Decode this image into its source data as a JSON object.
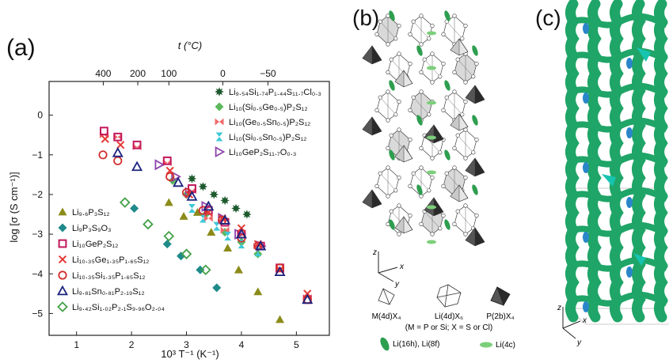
{
  "panels": {
    "a": {
      "label": "(a)"
    },
    "b": {
      "label": "(b)"
    },
    "c": {
      "label": "(c)"
    }
  },
  "chart_data": {
    "type": "scatter",
    "xlabel": "10³ T⁻¹ (K⁻¹)",
    "ylabel": "log [σ (S cm⁻¹)]",
    "top_axis_label": "t (°C)",
    "xlim": [
      0.5,
      5.6
    ],
    "ylim": [
      -5.55,
      0.85
    ],
    "x_ticks": [
      "1",
      "2",
      "3",
      "4",
      "5"
    ],
    "y_ticks": [
      "0",
      "−1",
      "−2",
      "−3",
      "−4",
      "−5"
    ],
    "top_ticks": [
      {
        "label": "400",
        "x": 1.486
      },
      {
        "label": "200",
        "x": 2.114
      },
      {
        "label": "100",
        "x": 2.68
      },
      {
        "label": "0",
        "x": 3.661
      },
      {
        "label": "−50",
        "x": 4.482
      }
    ],
    "grid": false,
    "legend_right": [
      {
        "name": "Li₉.₅₄Si₁.₇₄P₁.₄₄S₁₁.₇Cl₀.₃",
        "marker": "gear",
        "color": "#1e5a2e"
      },
      {
        "name": "Li₁₀(Si₀.₅Ge₀.₅)P₂S₁₂",
        "marker": "diamond",
        "color": "#5cb85c"
      },
      {
        "name": "Li₁₀(Ge₀.₅Sn₀.₅)P₂S₁₂",
        "marker": "bowtie",
        "color": "#f06a6a"
      },
      {
        "name": "Li₁₀(Si₀.₅Sn₀.₅)P₂S₁₂",
        "marker": "hourglass",
        "color": "#3ec8d6"
      },
      {
        "name": "Li₁₀GeP₂S₁₁.₇O₀.₃",
        "marker": "tri-right",
        "color": "#8e44ad"
      }
    ],
    "legend_left": [
      {
        "name": "Li₉.₆P₃S₁₂",
        "marker": "triangle",
        "color": "#8b8b1a"
      },
      {
        "name": "Li₉P₃S₉O₃",
        "marker": "diamond",
        "color": "#1f8a8a"
      },
      {
        "name": "Li₁₀GeP₂S₁₂",
        "marker": "square-open",
        "color": "#c2185b"
      },
      {
        "name": "Li₁₀.₃₅Ge₁.₃₅P₁.₆₅S₁₂",
        "marker": "x",
        "color": "#e53935"
      },
      {
        "name": "Li₁₀.₃₅Si₁.₃₅P₁.₆₅S₁₂",
        "marker": "circle-open",
        "color": "#d32f2f"
      },
      {
        "name": "Li₉.₈₁Sn₀.₈₁P₂.₁₉S₁₂",
        "marker": "triangle-open",
        "color": "#1a237e"
      },
      {
        "name": "Li₉.₄₂Si₁.₀₂P₂.₁S₉.₉₆O₂.₀₄",
        "marker": "diamond-open",
        "color": "#43a047"
      }
    ],
    "series": [
      {
        "name": "Li₉.₅₄Si₁.₇₄P₁.₄₄S₁₁.₇Cl₀.₃",
        "marker": "gear",
        "color": "#1e5a2e",
        "points": [
          [
            3.1,
            -1.6
          ],
          [
            3.3,
            -1.8
          ],
          [
            3.5,
            -2.0
          ],
          [
            3.7,
            -2.15
          ],
          [
            3.9,
            -2.35
          ],
          [
            4.1,
            -2.5
          ]
        ]
      },
      {
        "name": "Li₁₀(Si₀.₅Ge₀.₅)P₂S₁₂",
        "marker": "diamond",
        "color": "#5cb85c",
        "points": [
          [
            2.75,
            -1.65
          ],
          [
            3.0,
            -2.0
          ],
          [
            3.35,
            -2.5
          ],
          [
            3.7,
            -2.95
          ],
          [
            4.0,
            -3.2
          ],
          [
            4.3,
            -3.5
          ]
        ]
      },
      {
        "name": "Li₁₀(Ge₀.₅Sn₀.₅)P₂S₁₂",
        "marker": "bowtie",
        "color": "#f06a6a",
        "points": [
          [
            1.5,
            -0.5
          ],
          [
            1.75,
            -0.55
          ],
          [
            2.1,
            -0.8
          ],
          [
            2.65,
            -1.2
          ],
          [
            3.1,
            -1.9
          ],
          [
            3.4,
            -2.6
          ],
          [
            3.7,
            -2.9
          ],
          [
            4.0,
            -3.0
          ],
          [
            4.3,
            -3.3
          ],
          [
            4.7,
            -3.9
          ],
          [
            5.2,
            -4.6
          ]
        ]
      },
      {
        "name": "Li₁₀(Si₀.₅Sn₀.₅)P₂S₁₂",
        "marker": "hourglass",
        "color": "#3ec8d6",
        "points": [
          [
            3.1,
            -2.35
          ],
          [
            3.3,
            -2.6
          ],
          [
            3.55,
            -2.8
          ],
          [
            3.75,
            -3.05
          ],
          [
            4.0,
            -3.25
          ],
          [
            4.3,
            -3.45
          ]
        ]
      },
      {
        "name": "Li₁₀GeP₂S₁₁.₇O₀.₃",
        "marker": "tri-right",
        "color": "#8e44ad",
        "points": [
          [
            2.5,
            -1.25
          ],
          [
            2.8,
            -1.55
          ],
          [
            3.05,
            -1.95
          ],
          [
            3.35,
            -2.3
          ],
          [
            3.65,
            -2.6
          ],
          [
            3.95,
            -3.0
          ],
          [
            4.35,
            -3.3
          ]
        ]
      },
      {
        "name": "Li₉.₆P₃S₁₂",
        "marker": "triangle",
        "color": "#8b8b1a",
        "points": [
          [
            2.68,
            -2.2
          ],
          [
            2.95,
            -2.55
          ],
          [
            3.2,
            -2.45
          ],
          [
            3.45,
            -2.95
          ],
          [
            3.75,
            -3.35
          ],
          [
            3.95,
            -3.9
          ],
          [
            4.3,
            -4.45
          ],
          [
            4.7,
            -5.15
          ]
        ]
      },
      {
        "name": "Li₉P₃S₉O₃",
        "marker": "diamond",
        "color": "#1f8a8a",
        "points": [
          [
            2.05,
            -2.35
          ],
          [
            2.65,
            -3.25
          ],
          [
            2.9,
            -3.55
          ],
          [
            3.25,
            -3.9
          ],
          [
            3.55,
            -4.35
          ]
        ]
      },
      {
        "name": "Li₁₀GeP₂S₁₂",
        "marker": "square-open",
        "color": "#c2185b",
        "points": [
          [
            1.5,
            -0.4
          ],
          [
            1.75,
            -0.55
          ],
          [
            2.1,
            -0.75
          ],
          [
            2.65,
            -1.15
          ],
          [
            3.1,
            -1.85
          ],
          [
            3.4,
            -2.4
          ],
          [
            3.7,
            -2.7
          ],
          [
            4.0,
            -3.0
          ],
          [
            4.35,
            -3.3
          ],
          [
            4.7,
            -3.85
          ],
          [
            5.2,
            -4.65
          ]
        ]
      },
      {
        "name": "Li₁₀.₃₅Ge₁.₃₅P₁.₆₅S₁₂",
        "marker": "x",
        "color": "#e53935",
        "points": [
          [
            1.52,
            -0.6
          ],
          [
            1.8,
            -0.75
          ],
          [
            2.7,
            -1.4
          ],
          [
            3.05,
            -2.0
          ],
          [
            3.4,
            -2.45
          ],
          [
            3.65,
            -2.6
          ],
          [
            4.0,
            -2.85
          ],
          [
            4.3,
            -3.25
          ],
          [
            4.7,
            -3.9
          ],
          [
            5.2,
            -4.5
          ]
        ]
      },
      {
        "name": "Li₁₀.₃₅Si₁.₃₅P₁.₆₅S₁₂",
        "marker": "circle-open",
        "color": "#d32f2f",
        "points": [
          [
            1.48,
            -1.0
          ],
          [
            1.75,
            -1.15
          ],
          [
            2.7,
            -1.55
          ],
          [
            3.0,
            -1.95
          ],
          [
            3.3,
            -2.4
          ],
          [
            3.65,
            -2.65
          ],
          [
            4.0,
            -3.1
          ],
          [
            4.3,
            -3.3
          ],
          [
            4.7,
            -3.85
          ],
          [
            5.2,
            -4.65
          ]
        ]
      },
      {
        "name": "Li₉.₈₁Sn₀.₈₁P₂.₁₉S₁₂",
        "marker": "triangle-open",
        "color": "#1a237e",
        "points": [
          [
            1.75,
            -0.95
          ],
          [
            2.1,
            -1.3
          ],
          [
            2.85,
            -1.7
          ],
          [
            3.1,
            -2.05
          ],
          [
            3.4,
            -2.3
          ],
          [
            3.7,
            -2.65
          ],
          [
            4.0,
            -3.0
          ],
          [
            4.35,
            -3.3
          ],
          [
            4.7,
            -3.95
          ],
          [
            5.2,
            -4.65
          ]
        ]
      },
      {
        "name": "Li₉.₄₂Si₁.₀₂P₂.₁S₉.₉₆O₂.₀₄",
        "marker": "diamond-open",
        "color": "#43a047",
        "points": [
          [
            1.88,
            -2.2
          ],
          [
            2.3,
            -2.75
          ],
          [
            2.68,
            -3.05
          ],
          [
            3.0,
            -3.5
          ],
          [
            3.35,
            -3.9
          ]
        ]
      }
    ]
  },
  "panel_b": {
    "axes": {
      "z": "z",
      "x": "x",
      "y": "y"
    },
    "polyhedra_legend": [
      {
        "label": "M(4d)X₄",
        "fill": "#ffffff"
      },
      {
        "label": "Li(4d)X₆",
        "fill": "#ffffff"
      },
      {
        "label": "P(2b)X₄",
        "fill": "#2b2b2b"
      }
    ],
    "note": "(M = P or Si; X = S or Cl)",
    "site_legend": [
      {
        "label": "Li(16h), Li(8f)",
        "color": "#2e9e4f"
      },
      {
        "label": "Li(4c)",
        "color": "#7ccf7a"
      }
    ]
  },
  "panel_c": {
    "axes": {
      "z": "z",
      "x": "x",
      "y": "y"
    },
    "isosurface_color": "#1fa567",
    "hole_color": "#2a86c9"
  }
}
